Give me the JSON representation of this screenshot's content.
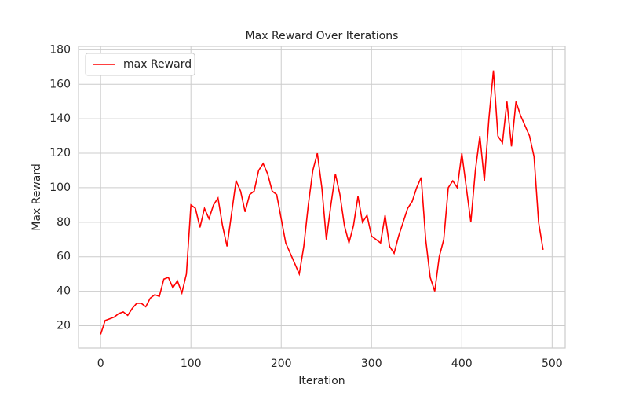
{
  "chart_data": {
    "type": "line",
    "title": "Max Reward Over Iterations",
    "xlabel": "Iteration",
    "ylabel": "Max Reward",
    "x": [
      0,
      5,
      10,
      15,
      20,
      25,
      30,
      35,
      40,
      45,
      50,
      55,
      60,
      65,
      70,
      75,
      80,
      85,
      90,
      95,
      100,
      105,
      110,
      115,
      120,
      125,
      130,
      135,
      140,
      145,
      150,
      155,
      160,
      165,
      170,
      175,
      180,
      185,
      190,
      195,
      200,
      205,
      210,
      215,
      220,
      225,
      230,
      235,
      240,
      245,
      250,
      255,
      260,
      265,
      270,
      275,
      280,
      285,
      290,
      295,
      300,
      305,
      310,
      315,
      320,
      325,
      330,
      335,
      340,
      345,
      350,
      355,
      360,
      365,
      370,
      375,
      380,
      385,
      390,
      395,
      400,
      405,
      410,
      415,
      420,
      425,
      430,
      435,
      440,
      445,
      450,
      455,
      460,
      465,
      470,
      475,
      480,
      485,
      490
    ],
    "series": [
      {
        "name": "max Reward",
        "color": "#ff0000",
        "values": [
          15,
          23,
          24,
          25,
          27,
          28,
          26,
          30,
          33,
          33,
          31,
          36,
          38,
          37,
          47,
          48,
          42,
          46,
          39,
          50,
          90,
          88,
          77,
          88,
          82,
          90,
          94,
          78,
          66,
          85,
          104,
          98,
          86,
          96,
          98,
          110,
          114,
          108,
          98,
          96,
          82,
          68,
          62,
          56,
          50,
          66,
          90,
          110,
          120,
          100,
          70,
          90,
          108,
          96,
          78,
          68,
          78,
          95,
          80,
          84,
          72,
          70,
          68,
          84,
          66,
          62,
          72,
          80,
          88,
          92,
          100,
          106,
          70,
          48,
          40,
          60,
          70,
          100,
          104,
          100,
          120,
          100,
          80,
          110,
          130,
          104,
          140,
          168,
          130,
          126,
          150,
          124,
          150,
          142,
          136,
          130,
          118,
          80,
          64
        ]
      }
    ],
    "xlim": [
      -24.5,
      514.5
    ],
    "ylim": [
      7,
      182
    ],
    "xticks": [
      0,
      100,
      200,
      300,
      400,
      500
    ],
    "yticks": [
      20,
      40,
      60,
      80,
      100,
      120,
      140,
      160,
      180
    ],
    "grid": true,
    "legend": "upper-left"
  }
}
